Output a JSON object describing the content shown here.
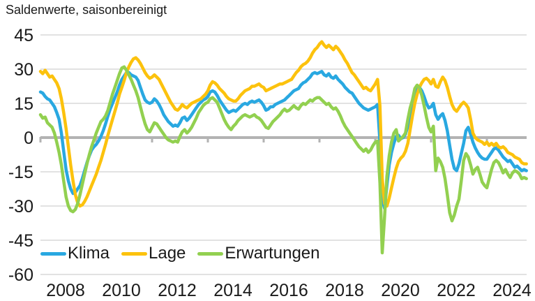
{
  "chart_data": {
    "type": "line",
    "title": "Saldenwerte, saisonbereinigt",
    "x_start_year": 2008,
    "frequency": "monthly",
    "x_tick_labels": [
      "2008",
      "2010",
      "2012",
      "2014",
      "2016",
      "2018",
      "2020",
      "2022",
      "2024"
    ],
    "y_ticks": [
      45,
      30,
      15,
      0,
      -15,
      -30,
      -45,
      -60
    ],
    "ylim": [
      -60,
      45
    ],
    "grid": "horizontal",
    "zero_axis": true,
    "legend_position": "bottom-left-inside",
    "colors": {
      "gridline": "#d9d9d9",
      "zero_line": "#b3b3b3",
      "text": "#1a1a1a"
    },
    "series": [
      {
        "name": "Klima",
        "color": "#29a8e1",
        "values": [
          20,
          19.5,
          18,
          17,
          16.5,
          15,
          13.5,
          11,
          8,
          2,
          -6,
          -14,
          -19,
          -22.5,
          -24.5,
          -24,
          -22.5,
          -21,
          -18,
          -14.5,
          -11,
          -8,
          -5.5,
          -4,
          -3,
          -1.5,
          0.5,
          3,
          6,
          9.5,
          12.5,
          15,
          17.5,
          20,
          23,
          25.5,
          27,
          28.5,
          28.5,
          27.5,
          27,
          26.5,
          25,
          22,
          19,
          16.5,
          15.5,
          15,
          15.5,
          17,
          16,
          14.5,
          12.5,
          10,
          8.5,
          7,
          6,
          5,
          5.5,
          5,
          6.5,
          8.5,
          9,
          7.5,
          8.5,
          10,
          11.5,
          13,
          14.5,
          15.5,
          16.5,
          17,
          18,
          20,
          20.5,
          20,
          18.5,
          16.5,
          15,
          13.5,
          12,
          11,
          11.5,
          12,
          11.5,
          12.5,
          13.5,
          14.5,
          15,
          14.5,
          15.5,
          16,
          15.5,
          16,
          16.5,
          15.5,
          14,
          12,
          12.5,
          13.5,
          13.5,
          14.5,
          15,
          15.5,
          16,
          16.5,
          17.5,
          18.5,
          19.5,
          20.5,
          21,
          21.5,
          23,
          24,
          24.5,
          25.5,
          26.5,
          28,
          28.5,
          28,
          28.5,
          29,
          27.5,
          27,
          28,
          26.5,
          26,
          27,
          25.5,
          24.5,
          23.5,
          22,
          21,
          20,
          19.5,
          18,
          16.5,
          15,
          14,
          13,
          12.5,
          12,
          12.5,
          13,
          13.5,
          14.5,
          -2,
          -27,
          -31,
          -21,
          -12,
          -6.5,
          -2.5,
          0.5,
          1,
          -0.5,
          0,
          1.5,
          5,
          9,
          13,
          17.5,
          21,
          22,
          20.5,
          18,
          15,
          13,
          13.5,
          15,
          10,
          8,
          9.5,
          10.5,
          7.5,
          3,
          -3.5,
          -9.5,
          -13.5,
          -14.5,
          -11.5,
          -7,
          -2.5,
          3,
          4.5,
          1.5,
          -2,
          -4.5,
          -6.5,
          -8,
          -9,
          -9.5,
          -9.5,
          -8,
          -6.5,
          -5,
          -4.5,
          -5.5,
          -7,
          -8.5,
          -9.5,
          -10.5,
          -10,
          -11.5,
          -13,
          -12.5,
          -13.5,
          -14.5,
          -14,
          -14.5
        ]
      },
      {
        "name": "Lage",
        "color": "#fcc20d",
        "values": [
          29,
          28,
          29.5,
          28,
          26.5,
          27,
          25.5,
          24,
          21.5,
          17,
          11,
          4,
          -4,
          -12,
          -19,
          -25,
          -28.5,
          -30,
          -29.5,
          -28,
          -26,
          -23.5,
          -21,
          -18.5,
          -16,
          -13,
          -10,
          -6.5,
          -3,
          1,
          4.5,
          8,
          11.5,
          15,
          19,
          22,
          25,
          28.5,
          31,
          33,
          34.5,
          35,
          34,
          32.5,
          30.5,
          28.5,
          27,
          26,
          26.5,
          27.5,
          26.5,
          25.5,
          23.5,
          21.5,
          19.5,
          17.5,
          15.5,
          14,
          12.5,
          12,
          13,
          14.5,
          13.5,
          13,
          14,
          15,
          15.5,
          16,
          16.5,
          17,
          18,
          19,
          20.5,
          23,
          24.5,
          24,
          23,
          21.5,
          20.5,
          19.5,
          18,
          17,
          16.5,
          16,
          16,
          17,
          18.5,
          19.5,
          20.5,
          21,
          21.5,
          22.5,
          22.5,
          23,
          23.5,
          22.5,
          22,
          20.5,
          21,
          21.5,
          22,
          22.5,
          23,
          23.5,
          23.5,
          24,
          24.5,
          25,
          25.5,
          27,
          28.5,
          29.5,
          31,
          32,
          32.5,
          33.5,
          35,
          37,
          38.5,
          39.5,
          41,
          42,
          40.5,
          39.5,
          40.5,
          39.5,
          38.5,
          40,
          39,
          37.5,
          36,
          34,
          32.5,
          30.5,
          28.5,
          27.5,
          26,
          24.5,
          23,
          21.5,
          22,
          21,
          20.5,
          22,
          23.5,
          25.5,
          14,
          -18,
          -29,
          -30,
          -26.5,
          -22,
          -17.5,
          -13.5,
          -10.5,
          -9,
          -8,
          -6,
          -2.5,
          3.5,
          9.5,
          15,
          19,
          22,
          24,
          25.5,
          26,
          25,
          23.5,
          25.5,
          22.5,
          22,
          24.5,
          26.5,
          25,
          22,
          18,
          14.5,
          12.5,
          11.5,
          13,
          14.5,
          15.5,
          14.5,
          13,
          8,
          2,
          0,
          -1,
          -1.5,
          -2,
          -3,
          -2,
          -3.5,
          -2.5,
          -3.5,
          -2.5,
          -4,
          -4.5,
          -4,
          -5,
          -6.5,
          -7,
          -7.5,
          -8.5,
          -9,
          -9.5,
          -11,
          -11.5,
          -11.5
        ]
      },
      {
        "name": "Erwartungen",
        "color": "#92d050",
        "values": [
          10,
          8.5,
          9,
          6.5,
          5.5,
          4.5,
          2,
          -2,
          -6.5,
          -12,
          -19,
          -26,
          -30,
          -32,
          -32.5,
          -31.5,
          -29,
          -25,
          -20.5,
          -16,
          -11.5,
          -7.5,
          -4,
          -1,
          2,
          4.5,
          7,
          8,
          9.5,
          12,
          15.5,
          19,
          22,
          25,
          28,
          30.5,
          31,
          29.5,
          27.5,
          25.5,
          23,
          20.5,
          17.5,
          13.5,
          9.5,
          6,
          3.5,
          2.5,
          4.5,
          6.5,
          6,
          4.5,
          3,
          1.5,
          0,
          -1,
          -1.5,
          -2,
          -1.5,
          -2,
          0.5,
          2.5,
          3.5,
          2,
          3,
          4.5,
          6.5,
          8.5,
          11,
          12.5,
          14,
          15,
          15.5,
          17,
          17.5,
          16.5,
          15.5,
          13,
          10.5,
          8,
          6,
          4.5,
          3.5,
          5,
          6,
          7.5,
          8.5,
          9.5,
          10,
          9.5,
          9,
          9.5,
          10,
          9,
          8.5,
          7.5,
          6,
          4.5,
          4,
          5.5,
          7,
          8,
          9,
          10,
          11.5,
          12.5,
          11.5,
          12,
          13,
          14,
          13,
          12.5,
          14,
          15,
          14.5,
          15.5,
          16.5,
          16,
          17,
          17.5,
          17.5,
          16.5,
          15.5,
          14.5,
          15,
          13.5,
          12.5,
          13,
          11.5,
          9.5,
          7,
          5,
          3.5,
          2,
          0.5,
          -1,
          -2.5,
          -4,
          -5,
          -6,
          -5,
          -6.5,
          -5.5,
          -3.5,
          -2,
          -1.5,
          -20,
          -50.5,
          -35,
          -17,
          -8,
          -2,
          2,
          3.5,
          -1.5,
          -0.5,
          0.5,
          2,
          8,
          13,
          16.5,
          21.5,
          23,
          22,
          18.5,
          14,
          9,
          4.5,
          2.5,
          5,
          -14.5,
          -9,
          -10.5,
          -13,
          -18,
          -25,
          -33,
          -36.5,
          -34,
          -30,
          -27,
          -19,
          -10,
          -7,
          -8.5,
          -12,
          -16,
          -14,
          -13,
          -16,
          -19.5,
          -21,
          -22,
          -18,
          -14,
          -11,
          -10,
          -11,
          -13,
          -15.5,
          -14,
          -16,
          -17.5,
          -15.5,
          -14.5,
          -15,
          -16,
          -18,
          -17.5,
          -18
        ]
      }
    ]
  }
}
